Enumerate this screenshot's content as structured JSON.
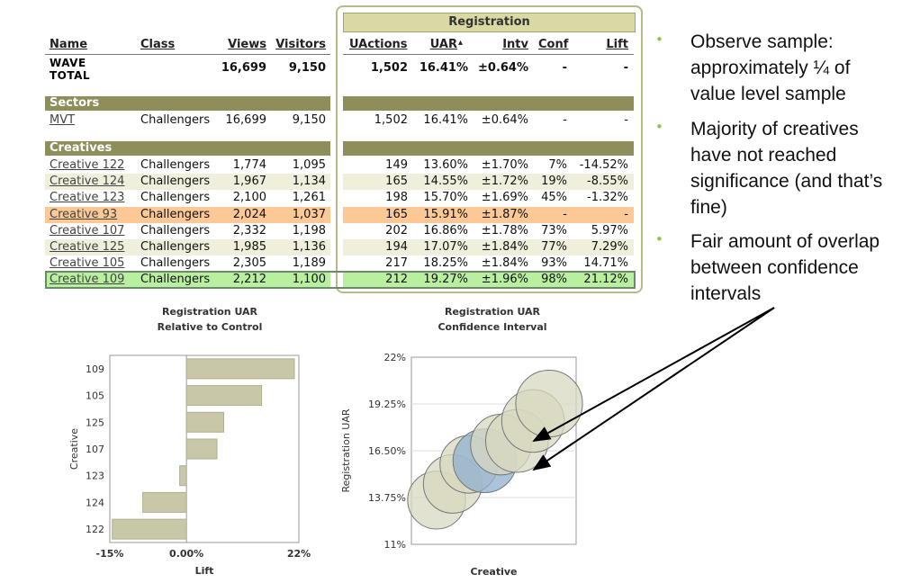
{
  "table": {
    "group_header": "Registration",
    "headers": {
      "name": "Name",
      "class": "Class",
      "views": "Views",
      "visitors": "Visitors",
      "uactions": "UActions",
      "uar": "UAR",
      "sort_arrow": "▴",
      "intv": "Intv",
      "conf": "Conf",
      "lift": "Lift"
    },
    "total": {
      "name_line1": "WAVE",
      "name_line2": "TOTAL",
      "views": "16,699",
      "visitors": "9,150",
      "uactions": "1,502",
      "uar": "16.41%",
      "intv": "±0.64%",
      "conf": "-",
      "lift": "-"
    },
    "sectors_label": "Sectors",
    "sectors": [
      {
        "name": "MVT",
        "class": "Challengers",
        "views": "16,699",
        "visitors": "9,150",
        "uactions": "1,502",
        "uar": "16.41%",
        "intv": "±0.64%",
        "conf": "-",
        "lift": "-"
      }
    ],
    "creatives_label": "Creatives",
    "creatives": [
      {
        "name": "Creative 122",
        "class": "Challengers",
        "views": "1,774",
        "visitors": "1,095",
        "uactions": "149",
        "uar": "13.60%",
        "intv": "±1.70%",
        "conf": "7%",
        "lift": "-14.52%",
        "band": "none"
      },
      {
        "name": "Creative 124",
        "class": "Challengers",
        "views": "1,967",
        "visitors": "1,134",
        "uactions": "165",
        "uar": "14.55%",
        "intv": "±1.72%",
        "conf": "19%",
        "lift": "-8.55%",
        "band": "light"
      },
      {
        "name": "Creative 123",
        "class": "Challengers",
        "views": "2,100",
        "visitors": "1,261",
        "uactions": "198",
        "uar": "15.70%",
        "intv": "±1.69%",
        "conf": "45%",
        "lift": "-1.32%",
        "band": "none"
      },
      {
        "name": "Creative 93",
        "class": "Challengers",
        "views": "2,024",
        "visitors": "1,037",
        "uactions": "165",
        "uar": "15.91%",
        "intv": "±1.87%",
        "conf": "-",
        "lift": "-",
        "band": "orange"
      },
      {
        "name": "Creative 107",
        "class": "Challengers",
        "views": "2,332",
        "visitors": "1,198",
        "uactions": "202",
        "uar": "16.86%",
        "intv": "±1.78%",
        "conf": "73%",
        "lift": "5.97%",
        "band": "none"
      },
      {
        "name": "Creative 125",
        "class": "Challengers",
        "views": "1,985",
        "visitors": "1,136",
        "uactions": "194",
        "uar": "17.07%",
        "intv": "±1.84%",
        "conf": "77%",
        "lift": "7.29%",
        "band": "light"
      },
      {
        "name": "Creative 105",
        "class": "Challengers",
        "views": "2,305",
        "visitors": "1,189",
        "uactions": "217",
        "uar": "18.25%",
        "intv": "±1.84%",
        "conf": "93%",
        "lift": "14.71%",
        "band": "none"
      },
      {
        "name": "Creative 109",
        "class": "Challengers",
        "views": "2,212",
        "visitors": "1,100",
        "uactions": "212",
        "uar": "19.27%",
        "intv": "±1.96%",
        "conf": "98%",
        "lift": "21.12%",
        "band": "green"
      }
    ]
  },
  "bullets": [
    "Observe sample: approximately ¼ of value level sample",
    "Majority of creatives have not reached significance (and that’s fine)",
    "Fair amount of overlap between confidence intervals"
  ],
  "bullet_symbol": "•",
  "colors": {
    "band_light": "#efefdc",
    "band_orange": "#fbc896",
    "band_green": "#b8f0a0",
    "section": "#8e8e5a",
    "bar": "#c8c8a8",
    "bubble": "#d8d8c0",
    "bubble_control": "#8fb0cf"
  },
  "chart_data": [
    {
      "type": "bar",
      "orientation": "horizontal",
      "title": "Registration UAR",
      "subtitle": "Relative to Control",
      "xlabel": "Lift",
      "ylabel": "Creative",
      "categories": [
        "109",
        "105",
        "125",
        "107",
        "123",
        "124",
        "122"
      ],
      "values": [
        21.12,
        14.71,
        7.29,
        5.97,
        -1.32,
        -8.55,
        -14.52
      ],
      "xlim": [
        -15,
        22
      ],
      "x_tick_labels": [
        "-15%",
        "0.00%",
        "22%"
      ],
      "x_ticks": [
        -15,
        0,
        22
      ]
    },
    {
      "type": "scatter",
      "marker": "circle",
      "title": "Registration UAR",
      "subtitle": "Confidence Interval",
      "xlabel": "Creative",
      "ylabel": "Registration UAR",
      "ylim": [
        11,
        22
      ],
      "y_ticks": [
        11,
        13.75,
        16.5,
        19.25,
        22
      ],
      "y_tick_labels": [
        "11%",
        "13.75%",
        "16.50%",
        "19.25%",
        "22%"
      ],
      "grid": true,
      "points": [
        {
          "creative": "122",
          "y": 13.6,
          "interval": 1.7,
          "control": false
        },
        {
          "creative": "124",
          "y": 14.55,
          "interval": 1.72,
          "control": false
        },
        {
          "creative": "123",
          "y": 15.7,
          "interval": 1.69,
          "control": false
        },
        {
          "creative": "93",
          "y": 15.91,
          "interval": 1.87,
          "control": true
        },
        {
          "creative": "107",
          "y": 16.86,
          "interval": 1.78,
          "control": false
        },
        {
          "creative": "125",
          "y": 17.07,
          "interval": 1.84,
          "control": false
        },
        {
          "creative": "105",
          "y": 18.25,
          "interval": 1.84,
          "control": false
        },
        {
          "creative": "109",
          "y": 19.27,
          "interval": 1.96,
          "control": false
        }
      ]
    }
  ]
}
